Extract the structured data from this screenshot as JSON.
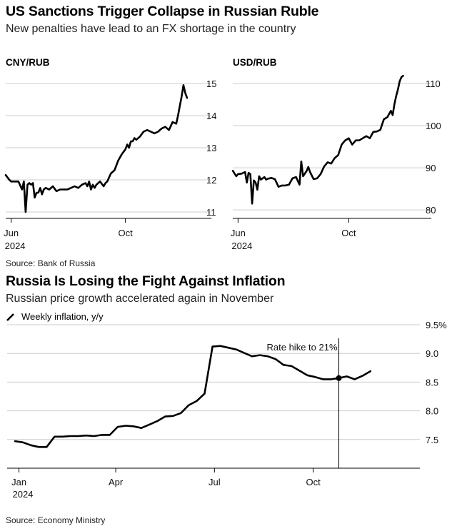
{
  "top": {
    "title": "US Sanctions Trigger Collapse in Russian Ruble",
    "subtitle": "New penalties have lead to an FX shortage in the country",
    "source": "Source: Bank of Russia"
  },
  "bottom": {
    "title": "Russia Is Losing the Fight Against Inflation",
    "subtitle": "Russian price growth accelerated again in November",
    "legend": "Weekly inflation, y/y",
    "source": "Source: Economy Ministry"
  },
  "colors": {
    "line": "#000000",
    "grid": "#cccccc",
    "axis": "#000000"
  },
  "chart_data": [
    {
      "type": "line",
      "title": "CNY/RUB",
      "ylim": [
        10.8,
        15.2
      ],
      "yticks": [
        "15",
        "14",
        "13",
        "12",
        "11"
      ],
      "ytick_values": [
        15,
        14,
        13,
        12,
        11
      ],
      "xlim": [
        0,
        100
      ],
      "xticks": [
        {
          "value": 3,
          "label": "Jun"
        },
        {
          "value": 66,
          "label": "Oct"
        }
      ],
      "year_label": "2024",
      "x": [
        0,
        2,
        3,
        5,
        7,
        9,
        10,
        11,
        12,
        13,
        14,
        15,
        16,
        17,
        18,
        19,
        20,
        21,
        22,
        24,
        26,
        28,
        30,
        32,
        34,
        36,
        38,
        40,
        42,
        44,
        45,
        46,
        47,
        48,
        49,
        50,
        51,
        52,
        54,
        55,
        56,
        58,
        60,
        62,
        64,
        66,
        67,
        68,
        69,
        70,
        71,
        72,
        74,
        76,
        78,
        80,
        82,
        84,
        86,
        88,
        90,
        92,
        94,
        95,
        96,
        97,
        98,
        99,
        100
      ],
      "values": [
        12.15,
        12.0,
        11.95,
        11.95,
        11.95,
        11.7,
        11.95,
        11.0,
        11.85,
        11.9,
        11.85,
        11.9,
        11.45,
        11.6,
        11.6,
        11.75,
        11.55,
        11.7,
        11.75,
        11.7,
        11.8,
        11.65,
        11.7,
        11.7,
        11.7,
        11.75,
        11.8,
        11.75,
        11.85,
        11.9,
        11.8,
        11.95,
        11.7,
        11.85,
        11.75,
        11.85,
        11.9,
        11.95,
        11.8,
        11.9,
        11.95,
        12.2,
        12.3,
        12.6,
        12.8,
        12.95,
        13.1,
        13.0,
        13.2,
        13.2,
        13.3,
        13.25,
        13.35,
        13.5,
        13.55,
        13.5,
        13.45,
        13.5,
        13.6,
        13.65,
        13.55,
        13.8,
        13.75,
        14.0,
        14.3,
        14.6,
        14.95,
        14.7,
        14.55
      ]
    },
    {
      "type": "line",
      "title": "USD/RUB",
      "ylim": [
        78,
        111.5
      ],
      "yticks": [
        "110",
        "100",
        "90",
        "80"
      ],
      "ytick_values": [
        110,
        100,
        90,
        80
      ],
      "xlim": [
        0,
        100
      ],
      "xticks": [
        {
          "value": 3,
          "label": "Jun"
        },
        {
          "value": 66,
          "label": "Oct"
        }
      ],
      "year_label": "2024",
      "x": [
        0,
        2,
        3,
        5,
        7,
        8,
        9,
        10,
        11,
        12,
        13,
        14,
        15,
        16,
        17,
        18,
        19,
        20,
        22,
        24,
        26,
        28,
        30,
        32,
        34,
        36,
        38,
        39,
        40,
        42,
        43,
        44,
        46,
        48,
        50,
        52,
        54,
        56,
        58,
        60,
        62,
        64,
        66,
        68,
        70,
        72,
        74,
        76,
        78,
        80,
        82,
        84,
        86,
        88,
        90,
        91,
        92,
        93,
        94,
        95,
        96,
        97
      ],
      "values": [
        89.3,
        88.0,
        88.5,
        88.6,
        89.0,
        86.5,
        88.8,
        88.5,
        81.5,
        87.0,
        86.5,
        84.8,
        88.0,
        87.2,
        87.5,
        87.8,
        87.2,
        87.4,
        87.6,
        87.3,
        85.5,
        85.8,
        85.8,
        86.0,
        87.5,
        87.8,
        86.0,
        91.5,
        88.0,
        89.2,
        90.2,
        89.0,
        87.3,
        87.5,
        88.5,
        90.3,
        91.3,
        91.0,
        92.3,
        93.0,
        95.5,
        96.5,
        97.0,
        95.5,
        96.5,
        96.5,
        97.0,
        97.5,
        97.0,
        98.5,
        98.6,
        99.0,
        101.5,
        102.0,
        103.5,
        102.5,
        105.0,
        107.0,
        108.5,
        110.5,
        111.5,
        111.8
      ]
    },
    {
      "type": "line",
      "title": "Weekly inflation, y/y",
      "ylim": [
        7.0,
        9.5
      ],
      "yticks": [
        "9.5%",
        "9.0",
        "8.5",
        "8.0",
        "7.5"
      ],
      "ytick_values": [
        9.5,
        9.0,
        8.5,
        8.0,
        7.5
      ],
      "xlim": [
        0,
        100
      ],
      "xticks": [
        {
          "value": 3,
          "label": "Jan"
        },
        {
          "value": 27.5,
          "label": "Apr"
        },
        {
          "value": 52.5,
          "label": "Jul"
        },
        {
          "value": 77.5,
          "label": "Oct"
        }
      ],
      "year_label": "2024",
      "x": [
        2,
        4,
        6,
        8,
        10,
        12,
        14,
        16,
        18,
        20,
        22,
        24,
        26,
        28,
        30,
        32,
        34,
        36,
        38,
        40,
        42,
        44,
        46,
        48,
        50,
        52,
        54,
        56,
        58,
        60,
        62,
        64,
        66,
        68,
        70,
        72,
        74,
        76,
        78,
        80,
        82,
        84,
        86,
        88,
        90,
        92
      ],
      "values": [
        7.47,
        7.45,
        7.4,
        7.37,
        7.37,
        7.55,
        7.55,
        7.56,
        7.56,
        7.57,
        7.56,
        7.58,
        7.58,
        7.72,
        7.74,
        7.73,
        7.7,
        7.76,
        7.82,
        7.9,
        7.91,
        7.96,
        8.1,
        8.17,
        8.3,
        9.12,
        9.13,
        9.1,
        9.07,
        9.01,
        8.95,
        8.97,
        8.95,
        8.9,
        8.8,
        8.78,
        8.7,
        8.62,
        8.59,
        8.55,
        8.55,
        8.57,
        8.6,
        8.55,
        8.61,
        8.69
      ],
      "annotation": {
        "label": "Rate hike to 21%",
        "x": 84
      }
    }
  ]
}
